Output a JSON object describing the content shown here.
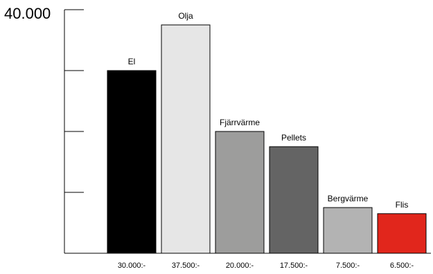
{
  "chart_data": {
    "type": "bar",
    "categories": [
      "El",
      "Olja",
      "Fjärrvärme",
      "Pellets",
      "Bergvärme",
      "Flis"
    ],
    "values": [
      30000,
      37500,
      20000,
      17500,
      7500,
      6500
    ],
    "value_labels": [
      "30.000:-",
      "37.500:-",
      "20.000:-",
      "17.500:-",
      "7.500:-",
      "6.500:-"
    ],
    "colors": [
      "#000000",
      "#e6e6e6",
      "#9d9d9c",
      "#646464",
      "#b3b3b3",
      "#e1261c"
    ],
    "ymax_label": "40.000",
    "ylim": [
      0,
      40000
    ],
    "yticks": [
      0,
      10000,
      20000,
      30000,
      40000
    ],
    "grid": false,
    "title": "",
    "xlabel": "",
    "ylabel": ""
  }
}
